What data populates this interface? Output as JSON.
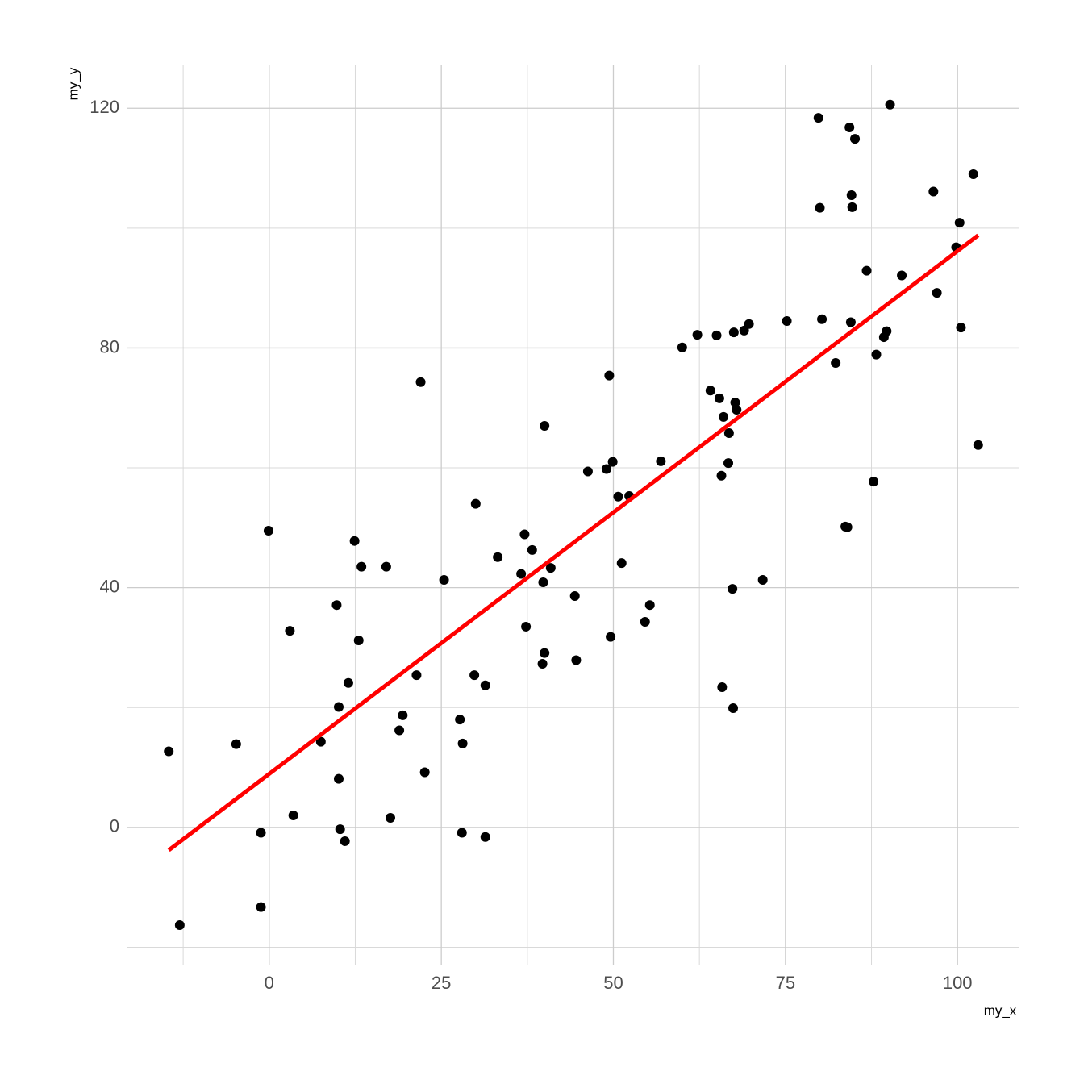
{
  "chart_data": {
    "type": "scatter",
    "x_label": "my_x",
    "y_label": "my_y",
    "xlim": [
      -20.6,
      109.0
    ],
    "ylim": [
      -22.9,
      127.3
    ],
    "xticks": [
      0,
      25,
      50,
      75,
      100
    ],
    "yticks": [
      0,
      40,
      80,
      120
    ],
    "x_minor_ticks": [
      -12.5,
      12.5,
      37.5,
      62.5,
      87.5
    ],
    "y_minor_ticks": [
      -20,
      20,
      60,
      100
    ],
    "grid": true,
    "color": "#000000",
    "x": [
      -14.6,
      -13.0,
      -4.8,
      -1.2,
      -1.2,
      -0.1,
      3.0,
      3.5,
      7.5,
      9.8,
      10.1,
      10.1,
      10.3,
      11.0,
      11.5,
      12.4,
      13.0,
      13.4,
      17.0,
      17.6,
      18.9,
      19.4,
      21.4,
      22.0,
      22.6,
      25.4,
      27.7,
      28.0,
      28.1,
      29.8,
      30.0,
      31.4,
      31.4,
      33.2,
      36.6,
      37.1,
      37.3,
      38.2,
      39.7,
      39.8,
      40.0,
      40.0,
      40.9,
      44.4,
      44.6,
      46.3,
      49.0,
      49.4,
      49.6,
      49.9,
      50.7,
      51.2,
      52.3,
      54.6,
      55.3,
      56.9,
      60.0,
      62.2,
      64.1,
      65.0,
      65.4,
      65.7,
      65.8,
      66.0,
      66.7,
      66.8,
      67.3,
      67.4,
      67.5,
      67.7,
      67.9,
      69.0,
      69.7,
      71.7,
      75.2,
      79.8,
      80.0,
      80.3,
      82.3,
      83.7,
      84.0,
      84.3,
      84.5,
      84.6,
      84.7,
      85.1,
      86.8,
      87.8,
      88.2,
      89.3,
      89.7,
      90.2,
      91.9,
      96.5,
      97.0,
      99.8,
      100.3,
      100.5,
      102.3,
      103.0
    ],
    "values": [
      12.7,
      -16.3,
      13.9,
      -0.9,
      -13.3,
      49.5,
      32.8,
      2.0,
      14.3,
      37.1,
      20.1,
      8.1,
      -0.3,
      -2.3,
      24.1,
      47.8,
      31.2,
      43.5,
      43.5,
      1.6,
      16.2,
      18.7,
      25.4,
      74.3,
      9.2,
      41.3,
      18.0,
      -0.9,
      14.0,
      25.4,
      54.0,
      23.7,
      -1.6,
      45.1,
      42.3,
      48.9,
      33.5,
      46.3,
      27.3,
      40.9,
      29.1,
      67.0,
      43.3,
      38.6,
      27.9,
      59.4,
      59.8,
      75.4,
      31.8,
      61.0,
      55.2,
      44.1,
      55.3,
      34.3,
      37.1,
      61.1,
      80.1,
      82.2,
      72.9,
      82.1,
      71.6,
      58.7,
      23.4,
      68.5,
      60.8,
      65.8,
      39.8,
      19.9,
      82.6,
      70.9,
      69.7,
      82.9,
      84.0,
      41.3,
      84.5,
      118.4,
      103.4,
      84.8,
      77.5,
      50.2,
      50.1,
      116.8,
      84.3,
      105.5,
      103.5,
      114.9,
      92.9,
      57.7,
      78.9,
      81.8,
      82.8,
      120.6,
      92.1,
      106.1,
      89.2,
      96.8,
      100.9,
      83.4,
      109.0,
      63.8
    ],
    "trend_line": {
      "color": "#ff0000",
      "x": [
        -14.6,
        103.0
      ],
      "values": [
        -3.8,
        98.8
      ]
    }
  }
}
